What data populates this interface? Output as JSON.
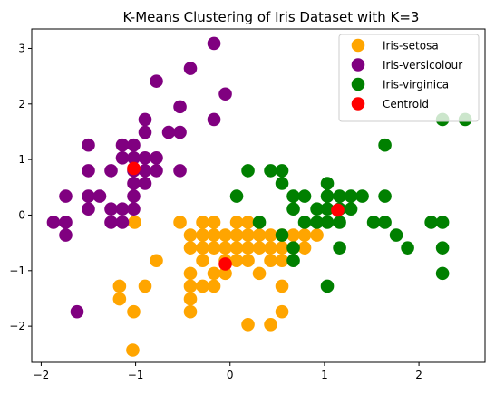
{
  "chart_data": {
    "type": "scatter",
    "title": "K-Means Clustering of Iris Dataset with K=3",
    "xlabel": "",
    "ylabel": "",
    "xlim": [
      -2.1,
      2.7
    ],
    "ylim": [
      -2.65,
      3.35
    ],
    "xticks": [
      -2,
      -1,
      0,
      1,
      2
    ],
    "yticks": [
      -2,
      -1,
      0,
      1,
      2,
      3
    ],
    "grid": false,
    "legend_position": "top-right",
    "series": [
      {
        "name": "Iris-setosa",
        "color": "#FFA500",
        "points": [
          [
            -1.03,
            -2.43
          ],
          [
            -1.02,
            -1.74
          ],
          [
            -1.17,
            -1.51
          ],
          [
            -1.17,
            -1.28
          ],
          [
            -0.9,
            -1.28
          ],
          [
            -0.78,
            -0.82
          ],
          [
            -1.01,
            -0.13
          ],
          [
            -0.53,
            -0.13
          ],
          [
            -0.42,
            -1.05
          ],
          [
            -0.42,
            -1.28
          ],
          [
            -0.42,
            -1.51
          ],
          [
            -0.42,
            -1.74
          ],
          [
            -0.29,
            -1.28
          ],
          [
            -0.17,
            -1.28
          ],
          [
            -0.17,
            -1.05
          ],
          [
            -0.05,
            -1.05
          ],
          [
            -0.29,
            -0.82
          ],
          [
            -0.42,
            -0.59
          ],
          [
            -0.42,
            -0.36
          ],
          [
            -0.29,
            -0.13
          ],
          [
            -0.17,
            -0.13
          ],
          [
            -0.29,
            -0.36
          ],
          [
            -0.29,
            -0.59
          ],
          [
            -0.17,
            -0.36
          ],
          [
            -0.17,
            -0.59
          ],
          [
            -0.05,
            -0.36
          ],
          [
            -0.05,
            -0.59
          ],
          [
            0.07,
            -0.13
          ],
          [
            0.19,
            -0.13
          ],
          [
            0.07,
            -0.36
          ],
          [
            0.07,
            -0.59
          ],
          [
            0.19,
            -0.36
          ],
          [
            0.19,
            -0.59
          ],
          [
            0.19,
            -0.82
          ],
          [
            0.31,
            -0.36
          ],
          [
            0.31,
            -0.59
          ],
          [
            0.31,
            -1.05
          ],
          [
            0.43,
            -0.36
          ],
          [
            0.43,
            -0.59
          ],
          [
            0.43,
            -0.82
          ],
          [
            0.55,
            -0.36
          ],
          [
            0.55,
            -0.59
          ],
          [
            0.55,
            -0.82
          ],
          [
            0.55,
            -1.28
          ],
          [
            0.55,
            -1.74
          ],
          [
            0.67,
            -0.36
          ],
          [
            0.67,
            -0.59
          ],
          [
            0.79,
            -0.59
          ],
          [
            0.92,
            -0.36
          ],
          [
            0.19,
            -1.97
          ],
          [
            0.43,
            -1.97
          ],
          [
            -0.05,
            -0.82
          ],
          [
            0.07,
            -0.82
          ],
          [
            0.79,
            -0.36
          ]
        ]
      },
      {
        "name": "Iris-versicolour",
        "color": "#800080",
        "points": [
          [
            -0.17,
            3.09
          ],
          [
            -0.42,
            2.64
          ],
          [
            -0.05,
            2.18
          ],
          [
            -0.78,
            2.41
          ],
          [
            -0.17,
            1.72
          ],
          [
            -0.9,
            1.72
          ],
          [
            -0.53,
            1.95
          ],
          [
            -0.9,
            1.49
          ],
          [
            -0.53,
            1.49
          ],
          [
            -0.65,
            1.49
          ],
          [
            -1.02,
            1.26
          ],
          [
            -1.14,
            1.26
          ],
          [
            -1.5,
            1.26
          ],
          [
            -1.02,
            1.03
          ],
          [
            -1.14,
            1.03
          ],
          [
            -0.9,
            1.03
          ],
          [
            -0.78,
            1.03
          ],
          [
            -1.02,
            0.8
          ],
          [
            -1.26,
            0.8
          ],
          [
            -1.5,
            0.8
          ],
          [
            -0.9,
            0.8
          ],
          [
            -0.78,
            0.8
          ],
          [
            -0.53,
            0.8
          ],
          [
            -1.02,
            0.57
          ],
          [
            -0.9,
            0.57
          ],
          [
            -1.02,
            0.34
          ],
          [
            -1.38,
            0.34
          ],
          [
            -1.5,
            0.34
          ],
          [
            -1.74,
            0.34
          ],
          [
            -1.02,
            0.11
          ],
          [
            -1.26,
            0.11
          ],
          [
            -1.5,
            0.11
          ],
          [
            -1.14,
            0.11
          ],
          [
            -1.14,
            -0.13
          ],
          [
            -1.26,
            -0.13
          ],
          [
            -1.74,
            -0.13
          ],
          [
            -1.87,
            -0.13
          ],
          [
            -1.74,
            -0.36
          ],
          [
            -1.62,
            -1.74
          ]
        ]
      },
      {
        "name": "Iris-virginica",
        "color": "#008000",
        "points": [
          [
            2.25,
            1.72
          ],
          [
            2.49,
            1.72
          ],
          [
            1.64,
            1.26
          ],
          [
            0.19,
            0.8
          ],
          [
            0.43,
            0.8
          ],
          [
            0.55,
            0.8
          ],
          [
            1.03,
            0.57
          ],
          [
            0.55,
            0.57
          ],
          [
            0.07,
            0.34
          ],
          [
            0.67,
            0.34
          ],
          [
            0.79,
            0.34
          ],
          [
            1.16,
            0.34
          ],
          [
            1.28,
            0.34
          ],
          [
            1.4,
            0.34
          ],
          [
            1.64,
            0.34
          ],
          [
            1.03,
            0.34
          ],
          [
            0.67,
            0.11
          ],
          [
            0.92,
            0.11
          ],
          [
            1.03,
            0.11
          ],
          [
            1.16,
            0.11
          ],
          [
            1.28,
            0.11
          ],
          [
            0.79,
            -0.13
          ],
          [
            0.92,
            -0.13
          ],
          [
            1.03,
            -0.13
          ],
          [
            1.16,
            -0.13
          ],
          [
            1.52,
            -0.13
          ],
          [
            1.64,
            -0.13
          ],
          [
            2.13,
            -0.13
          ],
          [
            2.25,
            -0.13
          ],
          [
            0.31,
            -0.13
          ],
          [
            0.55,
            -0.36
          ],
          [
            1.76,
            -0.36
          ],
          [
            0.67,
            -0.59
          ],
          [
            1.16,
            -0.59
          ],
          [
            1.88,
            -0.59
          ],
          [
            2.25,
            -0.59
          ],
          [
            0.67,
            -0.82
          ],
          [
            2.25,
            -1.05
          ],
          [
            1.03,
            -1.28
          ]
        ]
      },
      {
        "name": "Centroid",
        "color": "#FF0000",
        "points": [
          [
            -1.02,
            0.84
          ],
          [
            -0.05,
            -0.88
          ],
          [
            1.14,
            0.09
          ]
        ]
      }
    ]
  }
}
